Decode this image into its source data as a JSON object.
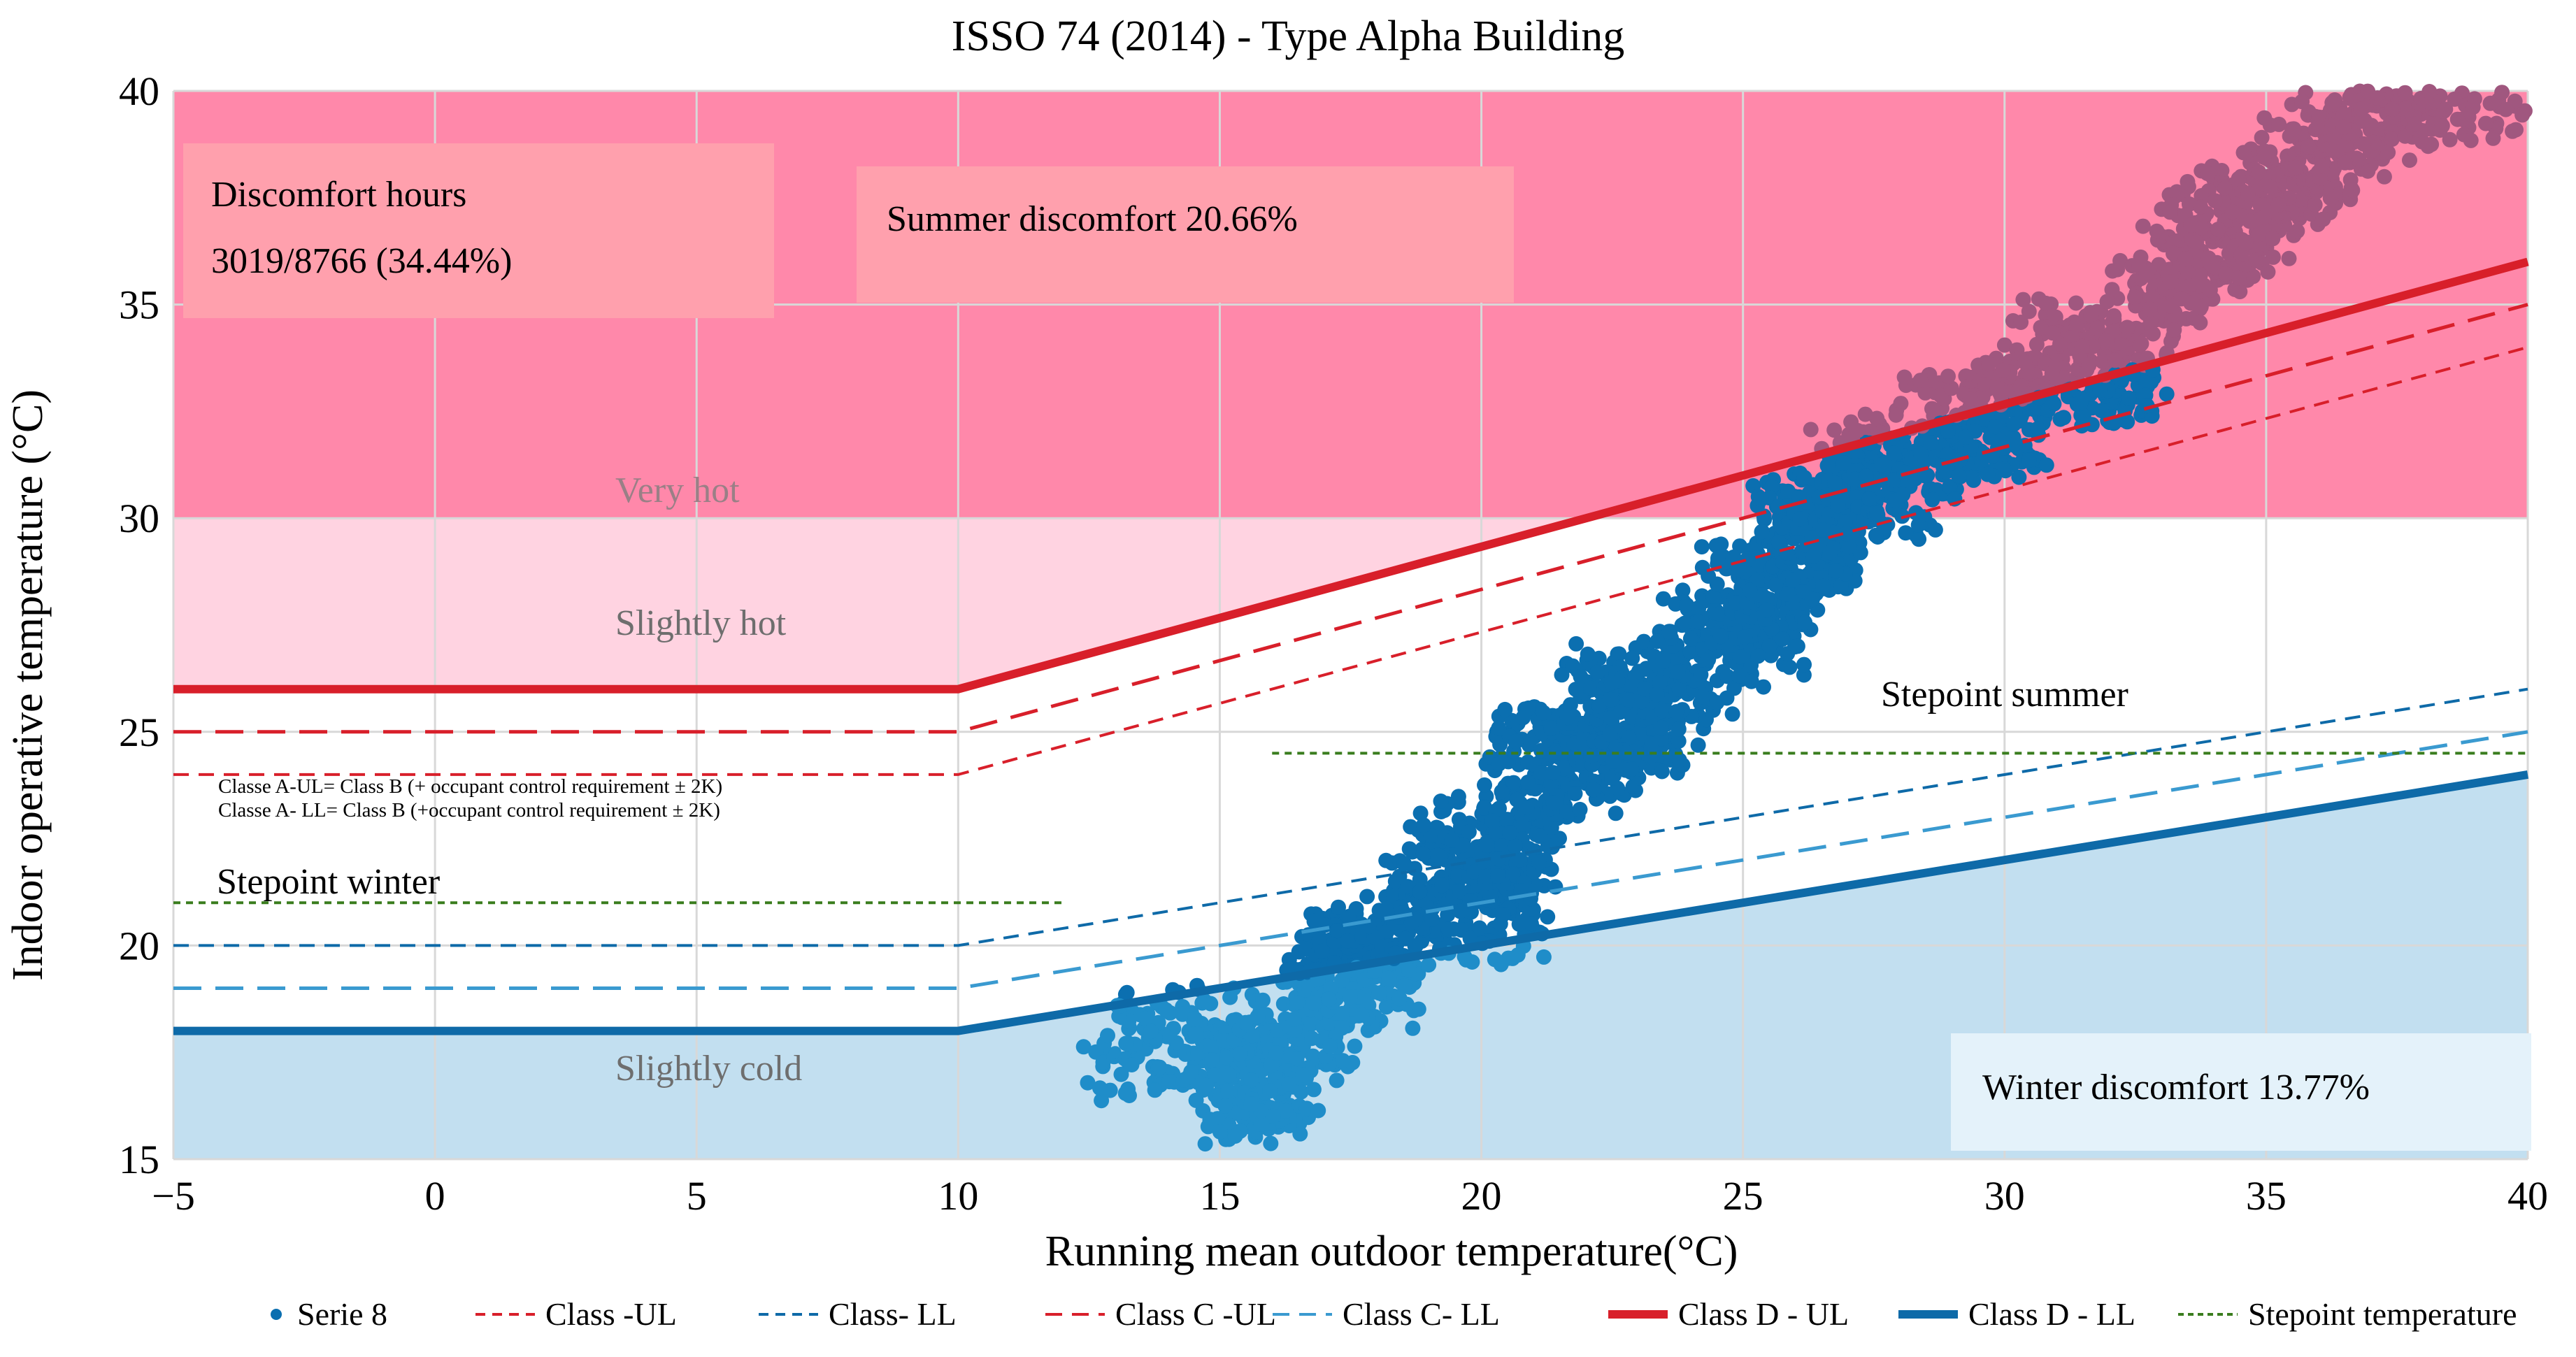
{
  "chart_data": {
    "type": "scatter",
    "title": "ISSO 74 (2014) - Type Alpha Building",
    "xlabel": "Running mean outdoor temperature(°C)",
    "ylabel": "Indoor operative temperature (°C)",
    "xlim": [
      -5,
      40
    ],
    "ylim": [
      15,
      40
    ],
    "xticks": [
      -5,
      0,
      5,
      10,
      15,
      20,
      25,
      30,
      35,
      40
    ],
    "yticks": [
      15,
      20,
      25,
      30,
      35,
      40
    ],
    "xtick_labels": [
      "−5",
      "0",
      "5",
      "10",
      "15",
      "20",
      "25",
      "30",
      "35",
      "40"
    ],
    "ytick_labels": [
      "15",
      "20",
      "25",
      "30",
      "35",
      "40"
    ],
    "grid": true,
    "legend_position": "bottom",
    "zone_labels": {
      "very_hot": "Very hot",
      "slightly_hot": "Slightly hot",
      "slightly_cold": "Slightly cold"
    },
    "annotations": {
      "discomfort_hours_title": "Discomfort hours",
      "discomfort_hours_value": "3019/8766 (34.44%)",
      "summer_discomfort": "Summer discomfort 20.66%",
      "winter_discomfort": "Winter discomfort 13.77%",
      "setpoint_summer": "Stepoint summer",
      "setpoint_winter": "Stepoint winter",
      "class_a_ul_note": "Classe A-UL= Class B (+ occupant control requirement ± 2K)",
      "class_a_ll_note": "Classe A- LL= Class B (+occupant control requirement ± 2K)"
    },
    "series": [
      {
        "name": "Serie 8",
        "kind": "scatter-cloud",
        "points": [
          [
            13,
            17.5
          ],
          [
            15,
            18.0
          ],
          [
            15.5,
            16.5
          ],
          [
            16,
            17.0
          ],
          [
            17,
            18.5
          ],
          [
            17.5,
            20.0
          ],
          [
            18,
            19.0
          ],
          [
            19,
            21.5
          ],
          [
            20,
            22.5
          ],
          [
            20.5,
            20.5
          ],
          [
            21,
            24.5
          ],
          [
            22,
            24.0
          ],
          [
            22.5,
            26.0
          ],
          [
            23,
            25.0
          ],
          [
            24,
            26.5
          ],
          [
            25,
            28.5
          ],
          [
            25.5,
            27.0
          ],
          [
            26,
            30.0
          ],
          [
            26.5,
            29.0
          ],
          [
            27,
            31.5
          ],
          [
            28,
            30.5
          ],
          [
            29,
            32.5
          ],
          [
            30,
            32.0
          ],
          [
            31,
            34.0
          ],
          [
            32,
            33.0
          ],
          [
            33,
            35.5
          ],
          [
            34,
            36.5
          ],
          [
            35,
            37.5
          ],
          [
            36,
            38.5
          ],
          [
            37,
            39.5
          ],
          [
            38,
            40.0
          ],
          [
            40,
            40.0
          ]
        ]
      },
      {
        "name": "Class -UL",
        "x": [
          -5,
          10,
          40
        ],
        "y": [
          25,
          25,
          35
        ]
      },
      {
        "name": "Class- LL",
        "x": [
          -5,
          10,
          40
        ],
        "y": [
          20,
          20,
          26
        ]
      },
      {
        "name": "Class C -UL",
        "x": [
          -5,
          10,
          40
        ],
        "y": [
          24,
          24,
          34
        ]
      },
      {
        "name": "Class C- LL",
        "x": [
          -5,
          10,
          40
        ],
        "y": [
          19,
          19,
          25
        ]
      },
      {
        "name": "Class D - UL",
        "x": [
          -5,
          10,
          40
        ],
        "y": [
          26,
          26,
          36
        ]
      },
      {
        "name": "Class D - LL",
        "x": [
          -5,
          10,
          40
        ],
        "y": [
          18,
          18,
          24
        ]
      },
      {
        "name": "Stepoint temperature",
        "segments": [
          {
            "x": [
              -5,
              12
            ],
            "y": [
              21,
              21
            ]
          },
          {
            "x": [
              16,
              40
            ],
            "y": [
              24.5,
              24.5
            ]
          }
        ]
      }
    ],
    "colors": {
      "very_hot_fill": "#ff88aa",
      "slightly_hot_fill": "#ffd3e1",
      "cold_fill": "#c2dff0",
      "scatter": "#0b6fb0",
      "scatter_light": "#1f8dc9",
      "scatter_overlap": "#a0577f",
      "red": "#d81f2a",
      "blue": "#0e6aa8",
      "light_blue": "#3a9ad0",
      "green": "#3a7d1e",
      "grid": "#d8d8d8"
    }
  }
}
